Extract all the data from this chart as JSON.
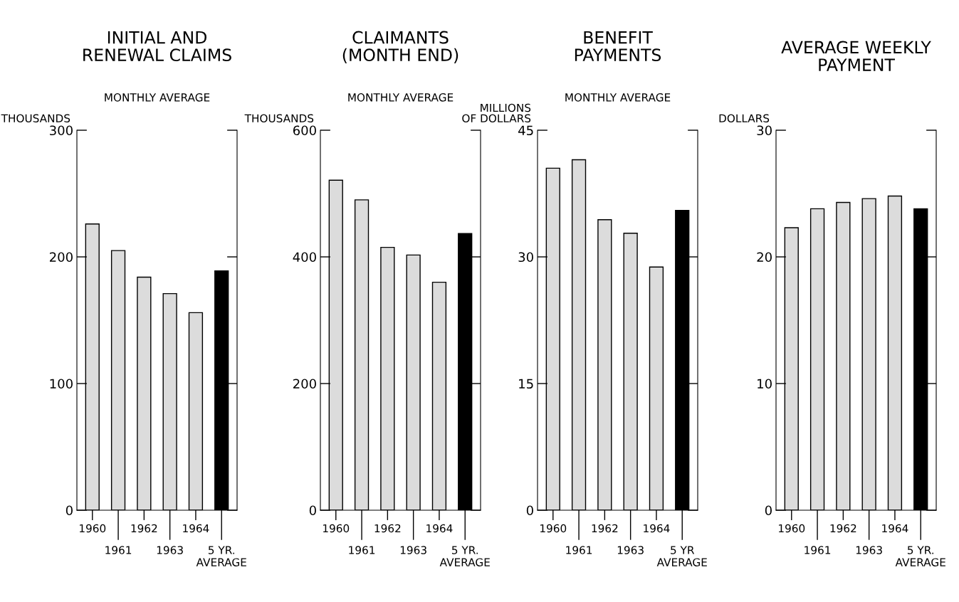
{
  "chart_data": [
    {
      "type": "bar",
      "title": "INITIAL AND\nRENEWAL CLAIMS",
      "subtitle": "MONTHLY AVERAGE",
      "ylabel": "THOUSANDS",
      "categories": [
        "1960",
        "1961",
        "1962",
        "1963",
        "1964",
        "5 YR.\nAVERAGE"
      ],
      "values": [
        226,
        205,
        184,
        171,
        156,
        189
      ],
      "colors": [
        "#dcdcdc",
        "#dcdcdc",
        "#dcdcdc",
        "#dcdcdc",
        "#dcdcdc",
        "#000000"
      ],
      "ylim": [
        0,
        300
      ],
      "yticks": [
        0,
        100,
        200,
        300
      ],
      "grid": false,
      "legend": false
    },
    {
      "type": "bar",
      "title": "CLAIMANTS\n(MONTH END)",
      "subtitle": "MONTHLY AVERAGE",
      "ylabel": "THOUSANDS",
      "categories": [
        "1960",
        "1961",
        "1962",
        "1963",
        "1964",
        "5 YR.\nAVERAGE"
      ],
      "values": [
        521,
        490,
        415,
        403,
        360,
        437
      ],
      "colors": [
        "#dcdcdc",
        "#dcdcdc",
        "#dcdcdc",
        "#dcdcdc",
        "#dcdcdc",
        "#000000"
      ],
      "ylim": [
        0,
        600
      ],
      "yticks": [
        0,
        200,
        400,
        600
      ],
      "grid": false,
      "legend": false
    },
    {
      "type": "bar",
      "title": "BENEFIT\nPAYMENTS",
      "subtitle": "MONTHLY AVERAGE",
      "ylabel": "MILLIONS\nOF DOLLARS",
      "categories": [
        "1960",
        "1961",
        "1962",
        "1963",
        "1964",
        "5 YR\nAVERAGE"
      ],
      "values": [
        40.5,
        41.5,
        34.4,
        32.8,
        28.8,
        35.5
      ],
      "colors": [
        "#dcdcdc",
        "#dcdcdc",
        "#dcdcdc",
        "#dcdcdc",
        "#dcdcdc",
        "#000000"
      ],
      "ylim": [
        0,
        45
      ],
      "yticks": [
        0,
        15,
        30,
        45
      ],
      "grid": false,
      "legend": false
    },
    {
      "type": "bar",
      "title": "AVERAGE WEEKLY\nPAYMENT",
      "ylabel": "DOLLARS",
      "categories": [
        "1960",
        "1961",
        "1962",
        "1963",
        "1964",
        "5 YR.\nAVERAGE"
      ],
      "values": [
        22.3,
        23.8,
        24.3,
        24.6,
        24.8,
        23.8
      ],
      "colors": [
        "#dcdcdc",
        "#dcdcdc",
        "#dcdcdc",
        "#dcdcdc",
        "#dcdcdc",
        "#000000"
      ],
      "ylim": [
        0,
        30
      ],
      "yticks": [
        0,
        10,
        20,
        30
      ],
      "grid": false,
      "legend": false
    }
  ]
}
